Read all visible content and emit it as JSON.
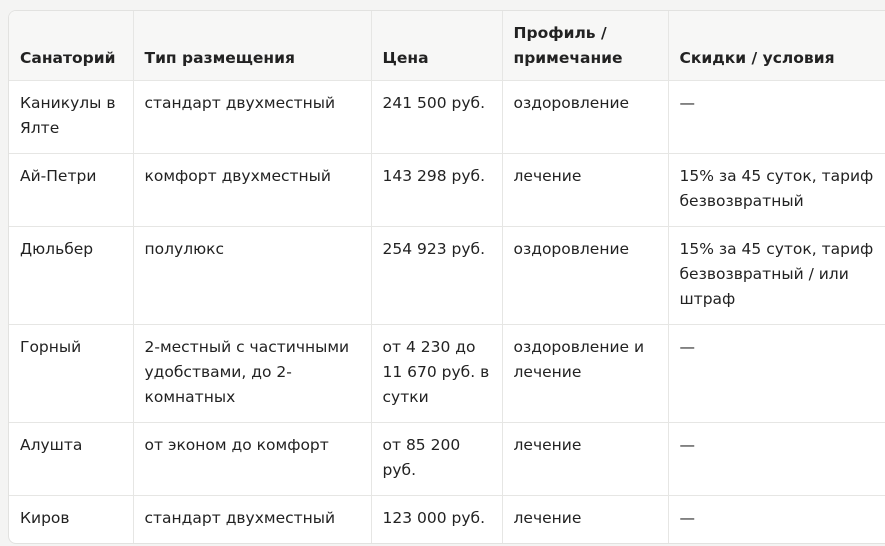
{
  "table": {
    "header": [
      "Санаторий",
      "Тип размещения",
      "Цена",
      "Профиль / примечание",
      "Скидки / условия"
    ],
    "rows": [
      [
        "Каникулы в Ялте",
        "стандарт двухместный",
        "241 500 руб.",
        "оздоровление",
        "—"
      ],
      [
        "Ай-Петри",
        "комфорт двухместный",
        "143 298 руб.",
        "лечение",
        "15% за 45 суток, тариф безвозвратный"
      ],
      [
        "Дюльбер",
        "полулюкс",
        "254 923 руб.",
        "оздоровление",
        "15% за 45 суток, тариф безвозвратный / или штраф"
      ],
      [
        "Горный",
        "2-местный с частичными удобствами, до 2-комнатных",
        "от 4 230 до 11 670 руб. в сутки",
        "оздоровление и лечение",
        "—"
      ],
      [
        "Алушта",
        "от эконом до комфорт",
        "от 85 200 руб.",
        "лечение",
        "—"
      ],
      [
        "Киров",
        "стандарт двухместный",
        "123 000 руб.",
        "лечение",
        "—"
      ]
    ]
  }
}
